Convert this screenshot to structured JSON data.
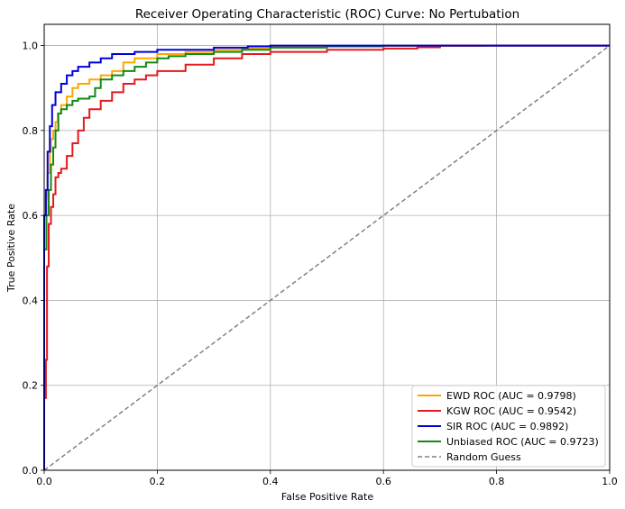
{
  "chart_data": {
    "type": "line",
    "title": "Receiver Operating Characteristic (ROC) Curve: No Pertubation",
    "xlabel": "False Positive Rate",
    "ylabel": "True Positive Rate",
    "xlim": [
      0.0,
      1.0
    ],
    "ylim": [
      0.0,
      1.05
    ],
    "xticks": [
      "0.0",
      "0.2",
      "0.4",
      "0.6",
      "0.8",
      "1.0"
    ],
    "yticks": [
      "0.0",
      "0.2",
      "0.4",
      "0.6",
      "0.8",
      "1.0"
    ],
    "grid": true,
    "legend_position": "lower-right",
    "series": [
      {
        "name": "EWD ROC (AUC = 0.9798)",
        "color": "#ffa500",
        "style": "solid",
        "x": [
          0.0,
          0.0,
          0.004,
          0.006,
          0.01,
          0.012,
          0.016,
          0.02,
          0.024,
          0.03,
          0.04,
          0.05,
          0.06,
          0.08,
          0.1,
          0.12,
          0.14,
          0.16,
          0.2,
          0.25,
          0.3,
          0.35,
          0.4,
          0.5,
          0.6,
          0.78,
          1.0
        ],
        "y": [
          0.0,
          0.6,
          0.64,
          0.7,
          0.75,
          0.78,
          0.8,
          0.82,
          0.84,
          0.86,
          0.88,
          0.9,
          0.91,
          0.92,
          0.93,
          0.94,
          0.96,
          0.97,
          0.98,
          0.985,
          0.99,
          0.993,
          0.996,
          0.998,
          0.999,
          1.0,
          1.0
        ]
      },
      {
        "name": "KGW ROC (AUC = 0.9542)",
        "color": "#e41a1c",
        "style": "solid",
        "x": [
          0.0,
          0.0,
          0.003,
          0.005,
          0.008,
          0.012,
          0.016,
          0.02,
          0.025,
          0.03,
          0.04,
          0.05,
          0.06,
          0.07,
          0.08,
          0.1,
          0.12,
          0.14,
          0.16,
          0.18,
          0.2,
          0.25,
          0.3,
          0.35,
          0.4,
          0.5,
          0.6,
          0.66,
          0.7,
          1.0
        ],
        "y": [
          0.0,
          0.17,
          0.26,
          0.48,
          0.58,
          0.62,
          0.65,
          0.69,
          0.7,
          0.71,
          0.74,
          0.77,
          0.8,
          0.83,
          0.85,
          0.87,
          0.89,
          0.91,
          0.92,
          0.93,
          0.94,
          0.955,
          0.97,
          0.98,
          0.985,
          0.99,
          0.993,
          0.996,
          1.0,
          1.0
        ]
      },
      {
        "name": "SIR ROC (AUC = 0.9892)",
        "color": "#0000dd",
        "style": "solid",
        "x": [
          0.0,
          0.0,
          0.003,
          0.006,
          0.01,
          0.014,
          0.02,
          0.03,
          0.04,
          0.05,
          0.06,
          0.08,
          0.1,
          0.12,
          0.16,
          0.2,
          0.3,
          0.36,
          0.4,
          0.5,
          1.0
        ],
        "y": [
          0.0,
          0.6,
          0.66,
          0.75,
          0.81,
          0.86,
          0.89,
          0.91,
          0.93,
          0.94,
          0.95,
          0.96,
          0.97,
          0.98,
          0.985,
          0.99,
          0.995,
          0.998,
          1.0,
          1.0,
          1.0
        ]
      },
      {
        "name": "Unbiased ROC (AUC = 0.9723)",
        "color": "#138a13",
        "style": "solid",
        "x": [
          0.0,
          0.0,
          0.004,
          0.008,
          0.012,
          0.016,
          0.02,
          0.025,
          0.03,
          0.04,
          0.05,
          0.06,
          0.08,
          0.09,
          0.1,
          0.12,
          0.14,
          0.16,
          0.18,
          0.2,
          0.22,
          0.25,
          0.3,
          0.35,
          0.4,
          0.5,
          0.6,
          1.0
        ],
        "y": [
          0.0,
          0.52,
          0.6,
          0.66,
          0.72,
          0.76,
          0.8,
          0.84,
          0.85,
          0.86,
          0.87,
          0.875,
          0.88,
          0.9,
          0.92,
          0.93,
          0.94,
          0.95,
          0.96,
          0.97,
          0.975,
          0.98,
          0.985,
          0.99,
          0.995,
          0.998,
          1.0,
          1.0
        ]
      },
      {
        "name": "Random Guess",
        "color": "#808080",
        "style": "dashed",
        "x": [
          0.0,
          1.0
        ],
        "y": [
          0.0,
          1.0
        ]
      }
    ]
  }
}
